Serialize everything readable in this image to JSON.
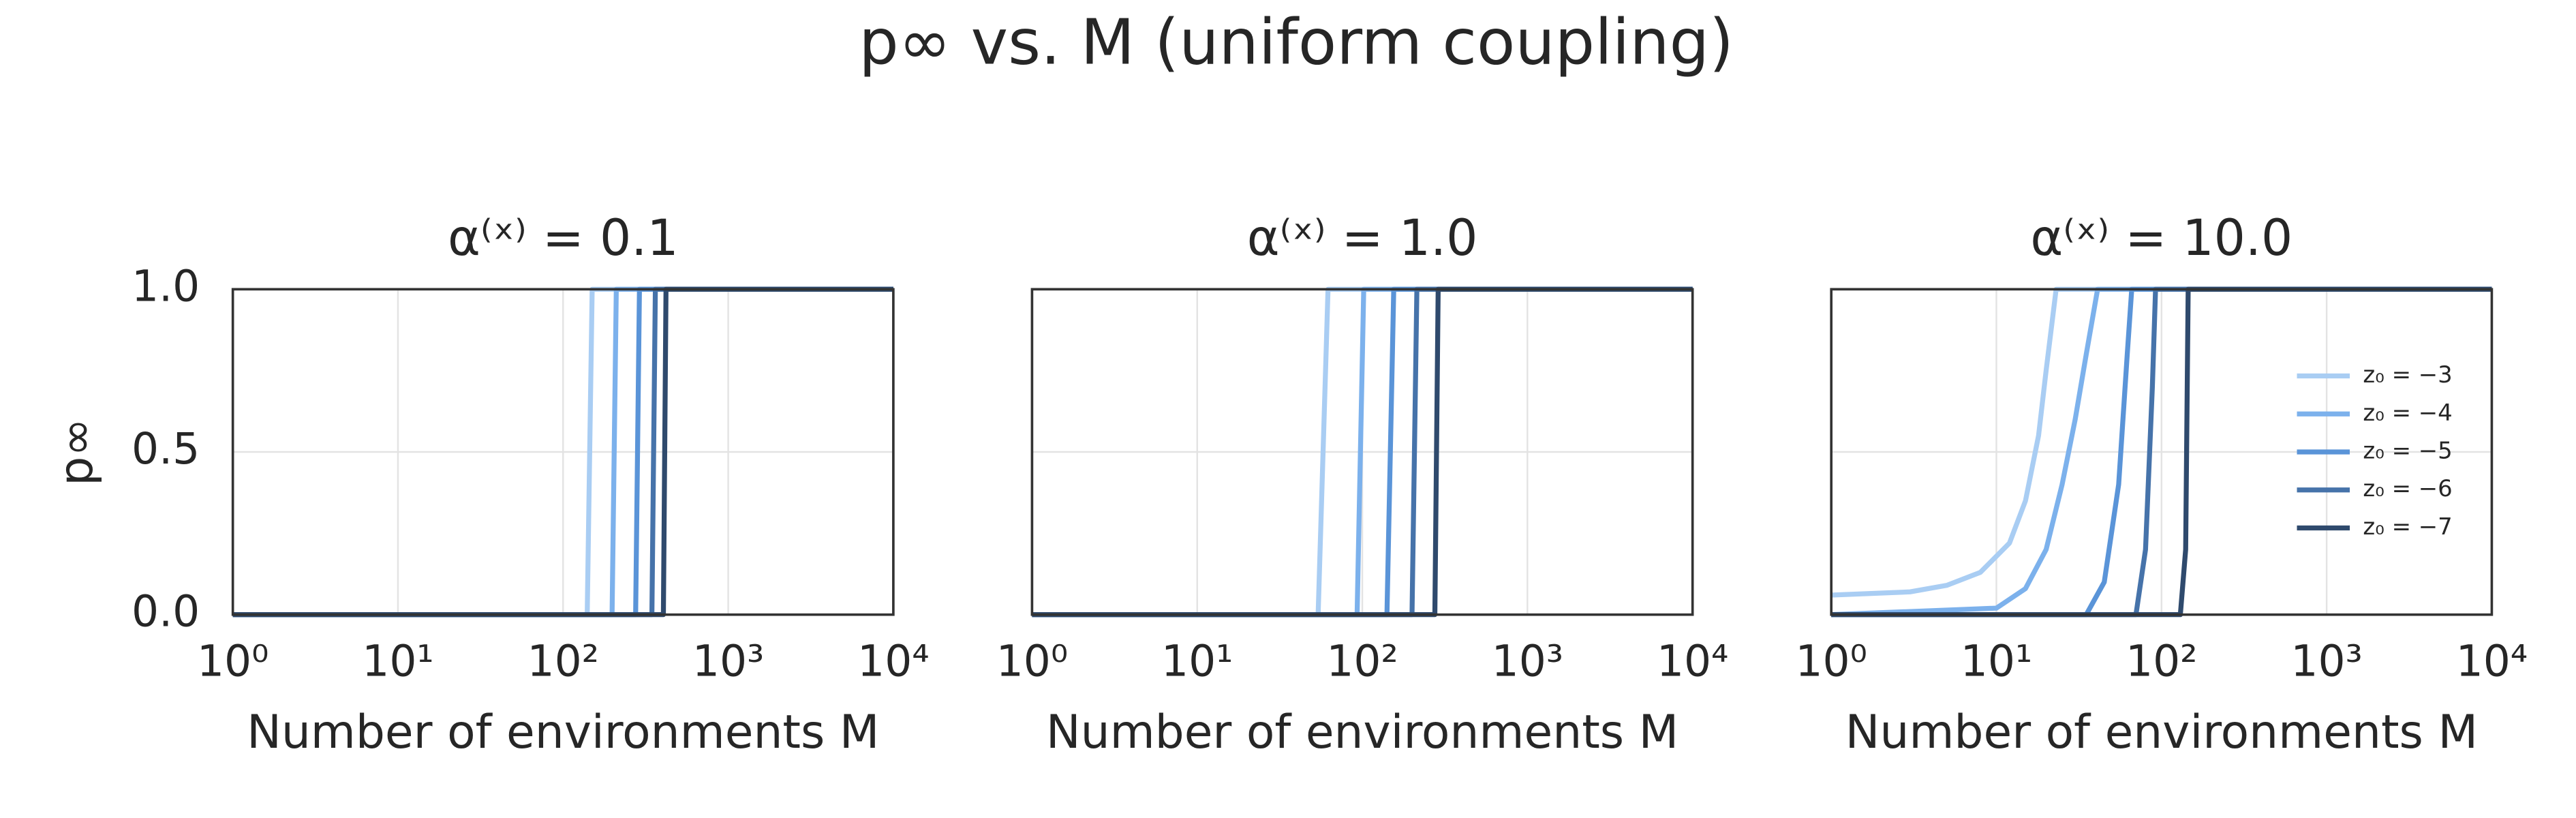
{
  "title": "p∞ vs. M (uniform coupling)",
  "chart_data": [
    {
      "type": "line",
      "title": "α⁽ˣ⁾ = 0.1",
      "x_label": "Number of environments M",
      "y_label": "p∞",
      "log_x": true,
      "grid": true,
      "xlim": [
        1,
        10000
      ],
      "ylim": [
        0,
        1
      ],
      "xticks": [
        {
          "value": 1,
          "label": "10⁰"
        },
        {
          "value": 10,
          "label": "10¹"
        },
        {
          "value": 100,
          "label": "10²"
        },
        {
          "value": 1000,
          "label": "10³"
        },
        {
          "value": 10000,
          "label": "10⁴"
        }
      ],
      "yticks": [
        {
          "value": 0,
          "label": "0.0"
        },
        {
          "value": 0.5,
          "label": "0.5"
        },
        {
          "value": 1,
          "label": "1.0"
        }
      ],
      "series": [
        {
          "color": "#a9cdf3",
          "x": [
            1,
            140,
            150,
            10000
          ],
          "values": [
            0,
            0,
            1,
            1
          ]
        },
        {
          "color": "#7cb1ec",
          "x": [
            1,
            198,
            210,
            10000
          ],
          "values": [
            0,
            0,
            1,
            1
          ]
        },
        {
          "color": "#5a94d8",
          "x": [
            1,
            275,
            290,
            10000
          ],
          "values": [
            0,
            0,
            1,
            1
          ]
        },
        {
          "color": "#4673aa",
          "x": [
            1,
            345,
            362,
            10000
          ],
          "values": [
            0,
            0,
            1,
            1
          ]
        },
        {
          "color": "#2f4a6d",
          "x": [
            1,
            405,
            420,
            10000
          ],
          "values": [
            0,
            0,
            1,
            1
          ]
        }
      ]
    },
    {
      "type": "line",
      "title": "α⁽ˣ⁾ = 1.0",
      "x_label": "Number of environments M",
      "log_x": true,
      "grid": true,
      "xlim": [
        1,
        10000
      ],
      "ylim": [
        0,
        1
      ],
      "xticks": [
        {
          "value": 1,
          "label": "10⁰"
        },
        {
          "value": 10,
          "label": "10¹"
        },
        {
          "value": 100,
          "label": "10²"
        },
        {
          "value": 1000,
          "label": "10³"
        },
        {
          "value": 10000,
          "label": "10⁴"
        }
      ],
      "series": [
        {
          "color": "#a9cdf3",
          "x": [
            1,
            54,
            62,
            10000
          ],
          "values": [
            0,
            0,
            1,
            1
          ]
        },
        {
          "color": "#7cb1ec",
          "x": [
            1,
            93,
            102,
            10000
          ],
          "values": [
            0,
            0,
            1,
            1
          ]
        },
        {
          "color": "#5a94d8",
          "x": [
            1,
            141,
            155,
            10000
          ],
          "values": [
            0,
            0,
            1,
            1
          ]
        },
        {
          "color": "#4673aa",
          "x": [
            1,
            200,
            214,
            10000
          ],
          "values": [
            0,
            0,
            1,
            1
          ]
        },
        {
          "color": "#2f4a6d",
          "x": [
            1,
            275,
            288,
            10000
          ],
          "values": [
            0,
            0,
            1,
            1
          ]
        }
      ]
    },
    {
      "type": "line",
      "title": "α⁽ˣ⁾ = 10.0",
      "x_label": "Number of environments M",
      "log_x": true,
      "grid": true,
      "xlim": [
        1,
        10000
      ],
      "ylim": [
        0,
        1
      ],
      "legend": "center right",
      "xticks": [
        {
          "value": 1,
          "label": "10⁰"
        },
        {
          "value": 10,
          "label": "10¹"
        },
        {
          "value": 100,
          "label": "10²"
        },
        {
          "value": 1000,
          "label": "10³"
        },
        {
          "value": 10000,
          "label": "10⁴"
        }
      ],
      "series": [
        {
          "name": "z₀ = −3",
          "color": "#a9cdf3",
          "x": [
            1,
            3,
            5,
            8,
            12,
            15,
            18,
            20,
            23,
            10000
          ],
          "values": [
            0.06,
            0.07,
            0.09,
            0.13,
            0.22,
            0.35,
            0.55,
            0.75,
            1,
            1
          ]
        },
        {
          "name": "z₀ = −4",
          "color": "#7cb1ec",
          "x": [
            1,
            10,
            15,
            20,
            25,
            30,
            35,
            41,
            10000
          ],
          "values": [
            0,
            0.02,
            0.08,
            0.2,
            0.4,
            0.6,
            0.8,
            1,
            1
          ]
        },
        {
          "name": "z₀ = −5",
          "color": "#5a94d8",
          "x": [
            1,
            35,
            45,
            55,
            62,
            66,
            10000
          ],
          "values": [
            0,
            0,
            0.1,
            0.4,
            0.8,
            1,
            1
          ]
        },
        {
          "name": "z₀ = −6",
          "color": "#4673aa",
          "x": [
            1,
            70,
            80,
            88,
            92,
            10000
          ],
          "values": [
            0,
            0,
            0.2,
            0.7,
            1,
            1
          ]
        },
        {
          "name": "z₀ = −7",
          "color": "#2f4a6d",
          "x": [
            1,
            130,
            140,
            145,
            10000
          ],
          "values": [
            0,
            0,
            0.2,
            1,
            1
          ]
        }
      ]
    }
  ]
}
